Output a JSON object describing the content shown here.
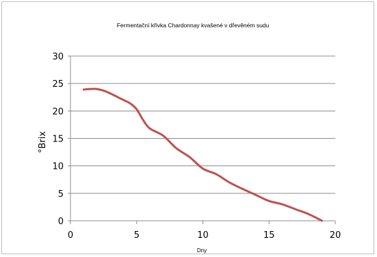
{
  "chart_data": {
    "type": "line",
    "title": "Fermentační křivka Chardonnay kvašené v dřevěném sudu",
    "xlabel": "Dny",
    "ylabel": "°Brix",
    "xlim": [
      0,
      20
    ],
    "ylim": [
      0,
      30
    ],
    "xticks": [
      0,
      5,
      10,
      15,
      20
    ],
    "yticks": [
      0,
      5,
      10,
      15,
      20,
      25,
      30
    ],
    "grid": "horizontal",
    "legend": "none",
    "series": [
      {
        "color": "#c0504d",
        "x": [
          1,
          1.5,
          2,
          2.5,
          3,
          3.5,
          4,
          4.5,
          5,
          5.5,
          6,
          7,
          8,
          9,
          10,
          11,
          12,
          13,
          14,
          15,
          16,
          17,
          18,
          19
        ],
        "y": [
          23.9,
          24.0,
          24.0,
          23.7,
          23.2,
          22.6,
          22.0,
          21.4,
          20.3,
          18.3,
          16.8,
          15.5,
          13.2,
          11.6,
          9.5,
          8.5,
          7.0,
          5.8,
          4.7,
          3.6,
          3.0,
          2.1,
          1.2,
          0.0
        ]
      }
    ]
  }
}
